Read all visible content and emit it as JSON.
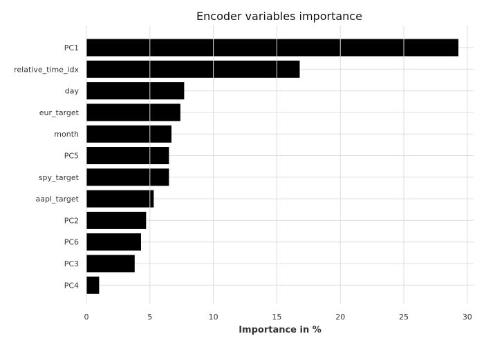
{
  "chart_data": {
    "type": "bar",
    "orientation": "horizontal",
    "title": "Encoder variables importance",
    "xlabel": "Importance in %",
    "ylabel": "",
    "xlim": [
      0,
      30.5
    ],
    "xticks": [
      0,
      5,
      10,
      15,
      20,
      25,
      30
    ],
    "grid": true,
    "bar_color": "#000000",
    "categories": [
      "PC1",
      "relative_time_idx",
      "day",
      "eur_target",
      "month",
      "PC5",
      "spy_target",
      "aapl_target",
      "PC2",
      "PC6",
      "PC3",
      "PC4"
    ],
    "values": [
      29.3,
      16.8,
      7.7,
      7.4,
      6.7,
      6.5,
      6.5,
      5.3,
      4.7,
      4.3,
      3.8,
      1.0
    ]
  }
}
